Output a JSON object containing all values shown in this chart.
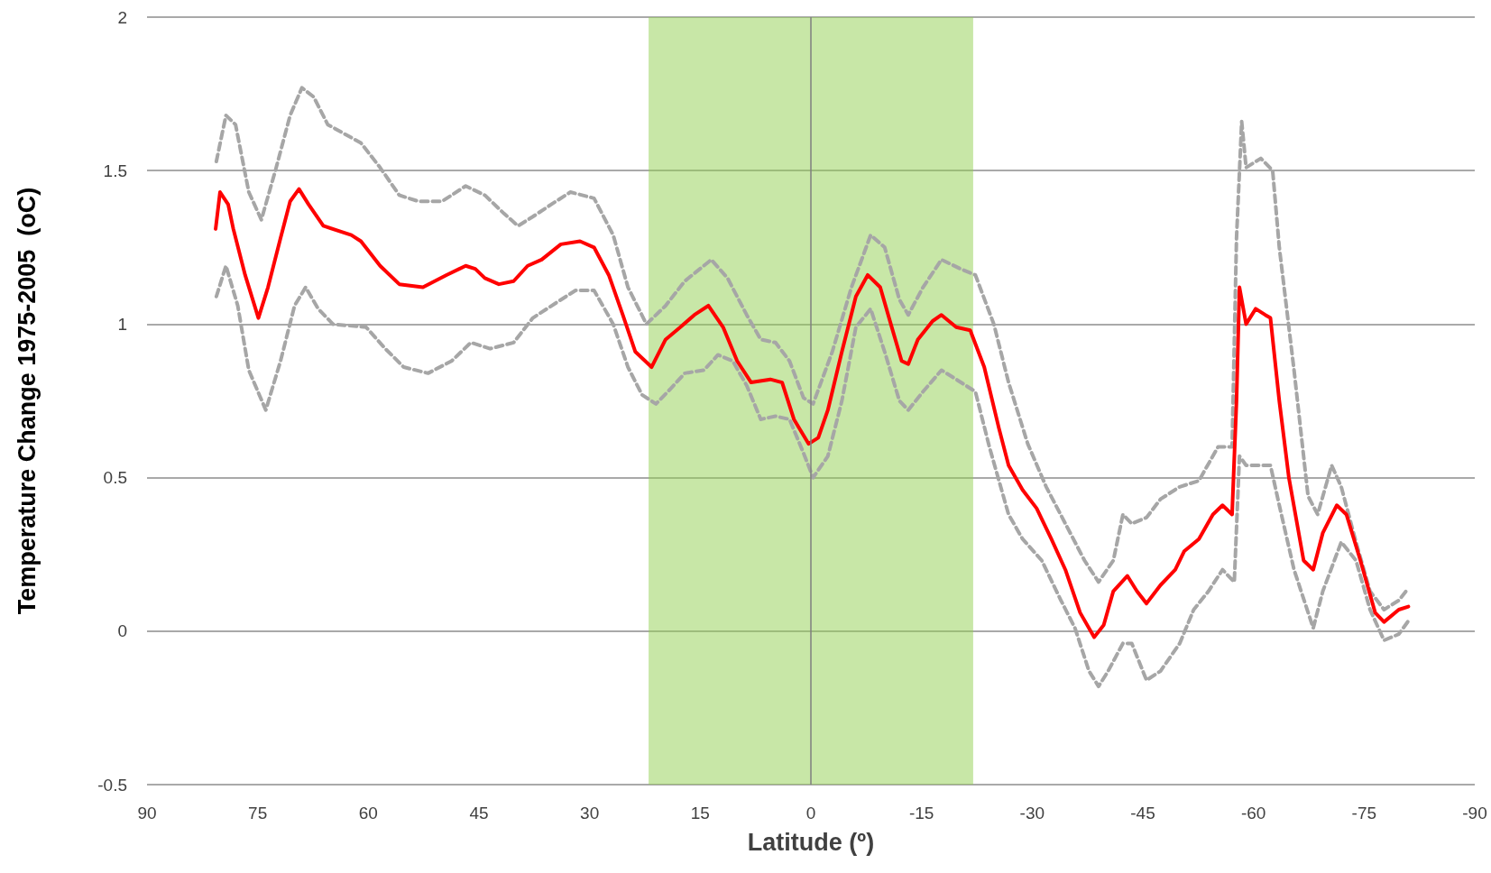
{
  "chart_data": {
    "type": "line",
    "xlabel": "Latitude (º)",
    "ylabel": "Temperature Change 1975-2005  (oC)",
    "xlim": [
      90,
      -90
    ],
    "xticks": [
      90,
      75,
      60,
      45,
      30,
      15,
      0,
      -15,
      -30,
      -45,
      -60,
      -75,
      -90
    ],
    "ylim": [
      -0.5,
      2
    ],
    "yticks": [
      -0.5,
      0,
      0.5,
      1,
      1.5,
      2
    ],
    "grid": "y",
    "marker": "none",
    "bands": [
      {
        "axis": "x",
        "from": 22,
        "to": -22,
        "color": "#92d050"
      }
    ],
    "ref_lines": [
      {
        "axis": "x",
        "value": 0,
        "color": "#7f7f7f"
      }
    ],
    "series": [
      {
        "color": "#a6a6a6",
        "line_style": "dashed",
        "x": [
          80.6,
          79.3,
          78,
          76.2,
          74.5,
          72.6,
          70.6,
          69,
          67.4,
          65.5,
          61,
          58.4,
          55.8,
          53.2,
          50,
          46.8,
          44.2,
          41.6,
          39.7,
          37.7,
          35.2,
          32.6,
          29.4,
          26.8,
          24.8,
          22.3,
          19.7,
          17.1,
          13.5,
          11.3,
          8.7,
          6.8,
          4.8,
          2.9,
          1,
          -0.3,
          -2.9,
          -5.5,
          -8.1,
          -10,
          -12,
          -13.2,
          -15.2,
          -17.7,
          -20.3,
          -22.3,
          -24.8,
          -26.8,
          -29.4,
          -31.9,
          -34.5,
          -37.1,
          -39,
          -41,
          -42.3,
          -43.5,
          -45.5,
          -47.4,
          -50,
          -52.6,
          -55.2,
          -57.1,
          -57.7,
          -58.4,
          -59,
          -61,
          -62.6,
          -63.5,
          -65.5,
          -67.4,
          -68.7,
          -70.6,
          -71.9,
          -73.9,
          -75.8,
          -77.7,
          -79.7,
          -81
        ],
        "values": [
          1.53,
          1.68,
          1.65,
          1.43,
          1.34,
          1.5,
          1.68,
          1.77,
          1.74,
          1.65,
          1.59,
          1.51,
          1.42,
          1.4,
          1.4,
          1.45,
          1.42,
          1.36,
          1.32,
          1.35,
          1.39,
          1.43,
          1.41,
          1.29,
          1.12,
          1.0,
          1.06,
          1.14,
          1.21,
          1.15,
          1.03,
          0.95,
          0.94,
          0.88,
          0.76,
          0.74,
          0.91,
          1.12,
          1.29,
          1.25,
          1.08,
          1.03,
          1.12,
          1.21,
          1.18,
          1.16,
          1.0,
          0.81,
          0.61,
          0.47,
          0.35,
          0.23,
          0.16,
          0.23,
          0.38,
          0.35,
          0.37,
          0.43,
          0.47,
          0.49,
          0.6,
          0.6,
          1.28,
          1.66,
          1.51,
          1.54,
          1.5,
          1.25,
          0.85,
          0.44,
          0.38,
          0.54,
          0.47,
          0.29,
          0.13,
          0.07,
          0.1,
          0.14
        ]
      },
      {
        "color": "#a6a6a6",
        "line_style": "dashed",
        "x": [
          80.6,
          79.3,
          77.7,
          76.2,
          73.9,
          71.9,
          70,
          68.5,
          66.8,
          64.8,
          60.3,
          57.7,
          55.2,
          51.9,
          48.7,
          46.1,
          43.5,
          40.3,
          37.7,
          34.5,
          31.9,
          29.4,
          26.8,
          24.8,
          22.9,
          21,
          19,
          17.1,
          14.5,
          12.6,
          10.6,
          8.7,
          6.8,
          4.8,
          2.9,
          1,
          -0.3,
          -2.3,
          -4.2,
          -6.1,
          -8.1,
          -10,
          -12,
          -13.2,
          -15.2,
          -17.7,
          -19.7,
          -22.3,
          -24.2,
          -26.8,
          -28.7,
          -31.3,
          -33.9,
          -35.8,
          -37.7,
          -39,
          -40.3,
          -42.3,
          -43.5,
          -45.5,
          -47.4,
          -50,
          -51.9,
          -53.9,
          -55.8,
          -57.4,
          -58.1,
          -59,
          -61,
          -62.3,
          -63.5,
          -65.5,
          -68.1,
          -69.4,
          -71.9,
          -73.9,
          -75.8,
          -77.7,
          -79.7,
          -81.2
        ],
        "values": [
          1.09,
          1.19,
          1.06,
          0.85,
          0.72,
          0.88,
          1.06,
          1.12,
          1.05,
          1.0,
          0.99,
          0.92,
          0.86,
          0.84,
          0.88,
          0.94,
          0.92,
          0.94,
          1.02,
          1.07,
          1.11,
          1.11,
          1.0,
          0.86,
          0.77,
          0.74,
          0.79,
          0.84,
          0.85,
          0.9,
          0.88,
          0.8,
          0.69,
          0.7,
          0.69,
          0.58,
          0.5,
          0.57,
          0.75,
          0.99,
          1.05,
          0.91,
          0.75,
          0.72,
          0.78,
          0.85,
          0.82,
          0.78,
          0.6,
          0.38,
          0.3,
          0.23,
          0.1,
          0.01,
          -0.13,
          -0.18,
          -0.13,
          -0.04,
          -0.04,
          -0.16,
          -0.13,
          -0.04,
          0.07,
          0.13,
          0.2,
          0.16,
          0.57,
          0.54,
          0.54,
          0.54,
          0.41,
          0.2,
          0.01,
          0.13,
          0.29,
          0.23,
          0.07,
          -0.03,
          -0.01,
          0.04
        ]
      },
      {
        "color": "#ff0000",
        "line_style": "solid",
        "x": [
          80.7,
          80.1,
          79,
          78.3,
          76.7,
          74.9,
          73.6,
          71.9,
          70.6,
          69.4,
          68.1,
          66.1,
          62.3,
          61,
          58.4,
          55.8,
          52.6,
          49.4,
          46.8,
          45.5,
          44.2,
          42.3,
          40.3,
          38.4,
          36.5,
          33.9,
          31.3,
          29.4,
          27.4,
          25.5,
          23.8,
          21.6,
          19.7,
          17.7,
          15.8,
          13.9,
          11.9,
          10,
          8.1,
          5.5,
          3.9,
          2.3,
          0.3,
          -1,
          -2.3,
          -4.2,
          -6.1,
          -7.7,
          -9.4,
          -10.6,
          -12.3,
          -13.2,
          -14.5,
          -16.5,
          -17.7,
          -19.7,
          -21.6,
          -23.5,
          -25.5,
          -26.8,
          -28.7,
          -30.6,
          -32.6,
          -34.5,
          -36.5,
          -38.4,
          -39.7,
          -41,
          -42.9,
          -44.2,
          -45.5,
          -47.4,
          -49.4,
          -50.6,
          -52.6,
          -54.5,
          -55.8,
          -57.1,
          -57.7,
          -58.1,
          -59,
          -60.3,
          -61.6,
          -62.3,
          -63.5,
          -64.8,
          -66.8,
          -68.1,
          -69.4,
          -71.3,
          -72.6,
          -74.5,
          -76.5,
          -77.7,
          -79.7,
          -81
        ],
        "values": [
          1.31,
          1.43,
          1.39,
          1.31,
          1.16,
          1.02,
          1.12,
          1.28,
          1.4,
          1.44,
          1.39,
          1.32,
          1.29,
          1.27,
          1.19,
          1.13,
          1.12,
          1.16,
          1.19,
          1.18,
          1.15,
          1.13,
          1.14,
          1.19,
          1.21,
          1.26,
          1.27,
          1.25,
          1.16,
          1.03,
          0.91,
          0.86,
          0.95,
          0.99,
          1.03,
          1.06,
          0.99,
          0.88,
          0.81,
          0.82,
          0.81,
          0.69,
          0.61,
          0.63,
          0.72,
          0.91,
          1.09,
          1.16,
          1.12,
          1.02,
          0.88,
          0.87,
          0.95,
          1.01,
          1.03,
          0.99,
          0.98,
          0.86,
          0.66,
          0.54,
          0.46,
          0.4,
          0.3,
          0.2,
          0.06,
          -0.02,
          0.02,
          0.13,
          0.18,
          0.13,
          0.09,
          0.15,
          0.2,
          0.26,
          0.3,
          0.38,
          0.41,
          0.38,
          0.75,
          1.12,
          1.0,
          1.05,
          1.03,
          1.02,
          0.75,
          0.5,
          0.23,
          0.2,
          0.32,
          0.41,
          0.38,
          0.23,
          0.06,
          0.03,
          0.07,
          0.08
        ]
      }
    ]
  }
}
